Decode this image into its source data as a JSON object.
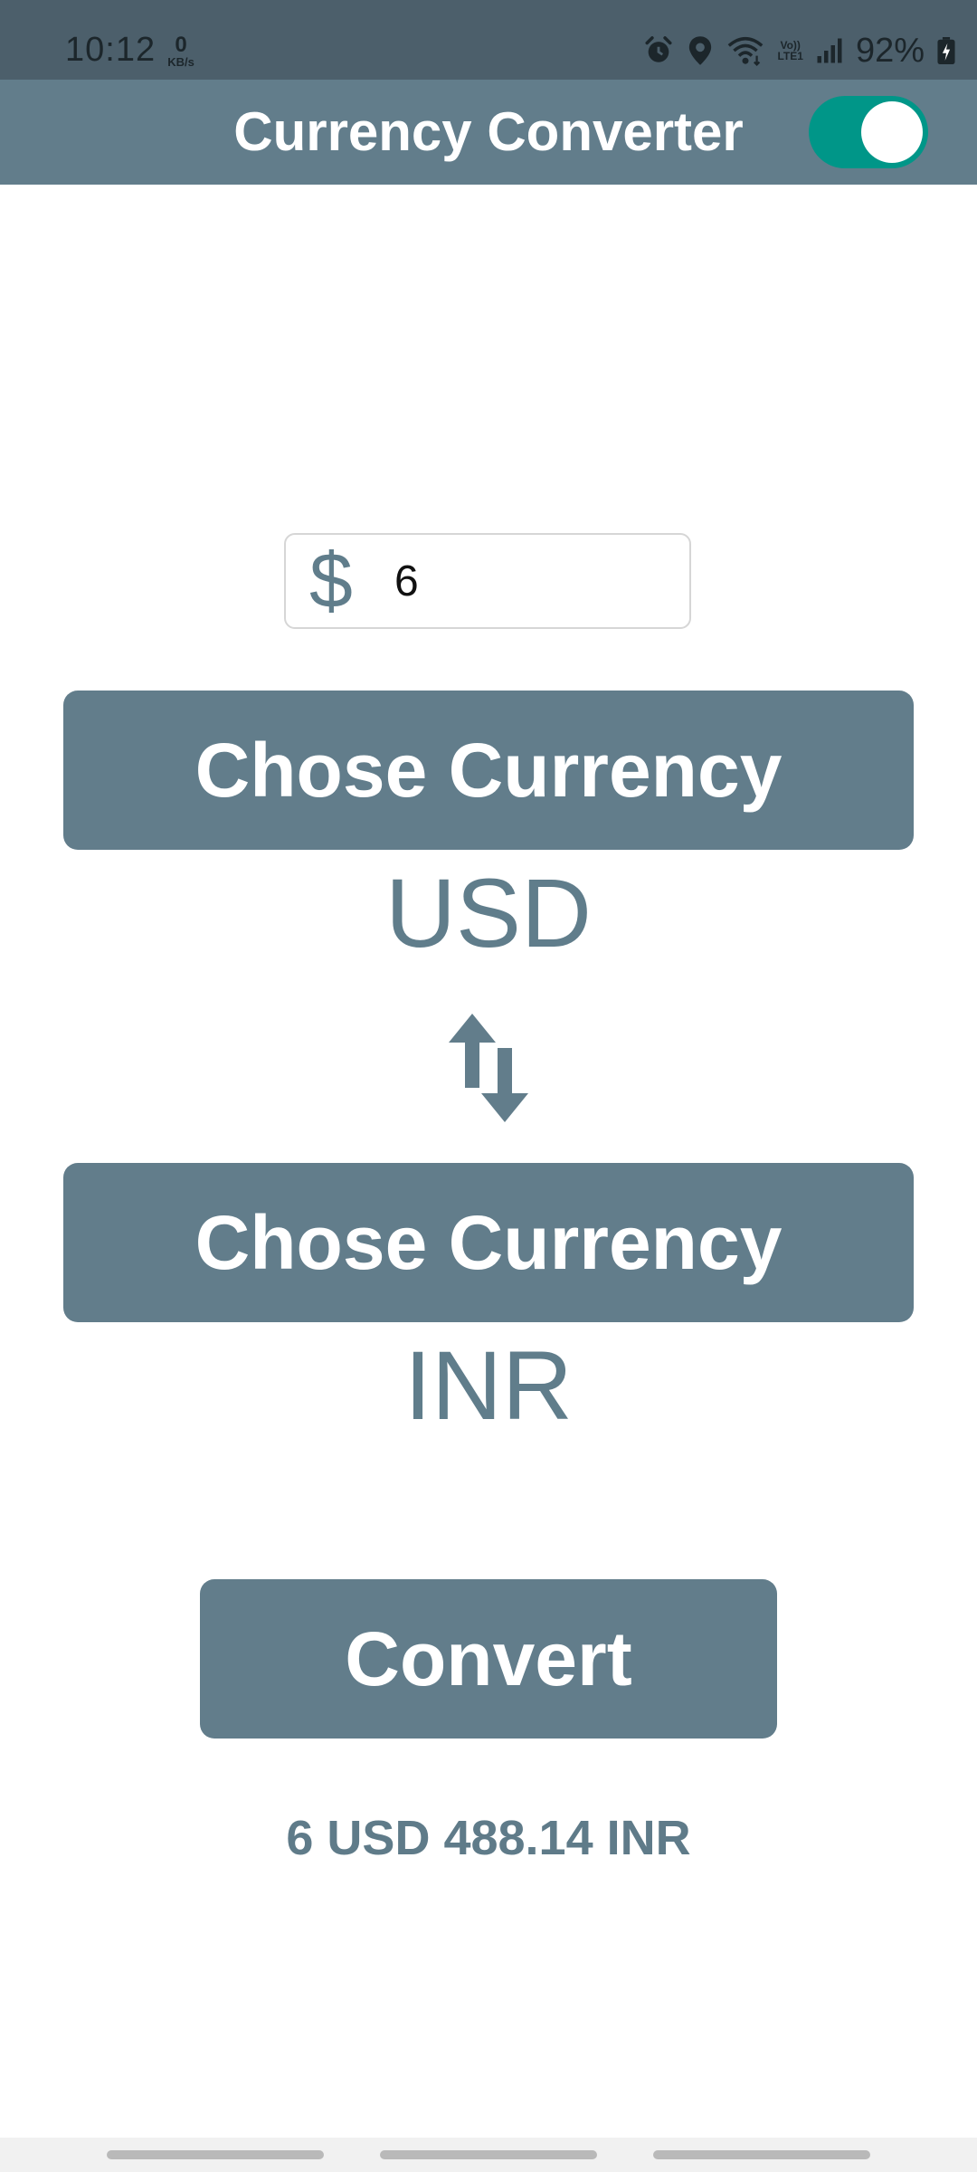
{
  "status_bar": {
    "time": "10:12",
    "net_speed_value": "0",
    "net_speed_unit": "KB/s",
    "volte_top": "Vo))",
    "volte_bottom": "LTE1",
    "battery_percent": "92%"
  },
  "app_bar": {
    "title": "Currency Converter",
    "toggle_state": "on",
    "toggle_color": "#009688"
  },
  "amount": {
    "currency_symbol": "$",
    "value": "6"
  },
  "from_currency": {
    "button_label": "Chose Currency",
    "code": "USD"
  },
  "swap": {
    "icon": "swap-vertical-icon"
  },
  "to_currency": {
    "button_label": "Chose Currency",
    "code": "INR"
  },
  "convert": {
    "button_label": "Convert"
  },
  "result": {
    "text": "6 USD 488.14 INR"
  },
  "colors": {
    "primary": "#627d8b",
    "accent": "#009688",
    "status_bar": "#4c5f6b"
  }
}
